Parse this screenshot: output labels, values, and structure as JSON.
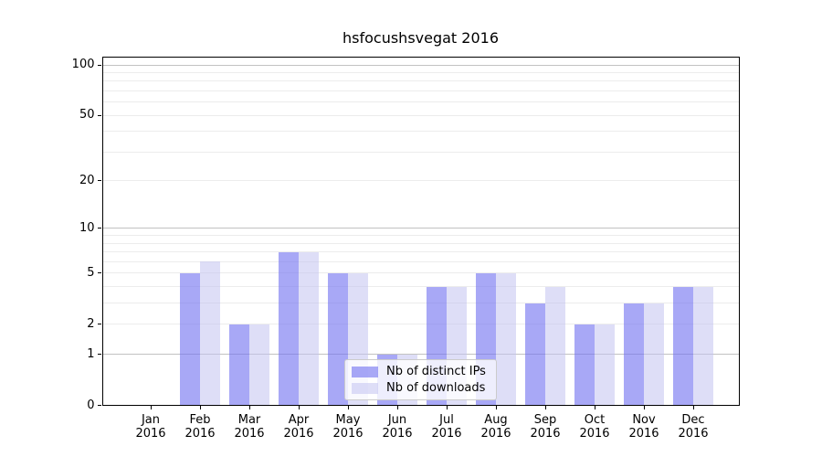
{
  "chart_data": {
    "type": "bar",
    "title": "hsfocushsvegat 2016",
    "year_label": "2016",
    "categories": [
      "Jan",
      "Feb",
      "Mar",
      "Apr",
      "May",
      "Jun",
      "Jul",
      "Aug",
      "Sep",
      "Oct",
      "Nov",
      "Dec"
    ],
    "series": [
      {
        "name": "Nb of distinct IPs",
        "color": "rgba(115,115,240,0.62)",
        "values": [
          0,
          5,
          2,
          7,
          5,
          1,
          4,
          5,
          3,
          2,
          3,
          4
        ]
      },
      {
        "name": "Nb of downloads",
        "color": "rgba(195,195,240,0.55)",
        "values": [
          0,
          6,
          2,
          7,
          5,
          1,
          4,
          5,
          4,
          2,
          3,
          4
        ]
      }
    ],
    "axis": {
      "yscale": "log10(1+x)",
      "yticks": [
        0,
        1,
        2,
        5,
        10,
        20,
        50,
        100
      ],
      "grid_minor": [
        2,
        3,
        4,
        5,
        6,
        7,
        8,
        9,
        20,
        30,
        40,
        50,
        60,
        70,
        80,
        90
      ],
      "grid_major": [
        1,
        10,
        100
      ],
      "y_top_value": 112,
      "grid": true
    },
    "legend": {
      "visible": true,
      "location": "lower center inside plot"
    },
    "colors": {
      "minor_grid": "#ececec",
      "major_grid": "#c2c2c2",
      "spine": "#000000",
      "text": "#000000",
      "background": "#ffffff"
    }
  }
}
